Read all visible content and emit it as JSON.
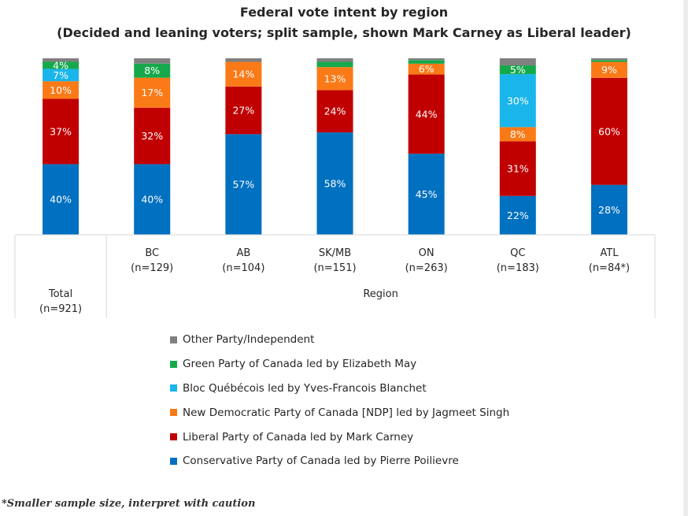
{
  "chart_data": {
    "type": "bar",
    "stacked": true,
    "title": "Federal vote intent by region",
    "subtitle": "(Decided and leaning voters; split sample, shown Mark Carney as Liberal leader)",
    "xlabel": "",
    "ylabel": "",
    "ylim": [
      0,
      100
    ],
    "grid": false,
    "legend_position": "bottom",
    "categories": [
      "Total\n(n=921)",
      "BC\n(n=129)",
      "AB\n(n=104)",
      "SK/MB\n(n=151)",
      "ON\n(n=263)",
      "QC\n(n=183)",
      "ATL\n(n=84*)"
    ],
    "group_labels": [
      {
        "label": "Total\n(n=921)",
        "members": [
          0
        ]
      },
      {
        "label": "Region",
        "members": [
          1,
          2,
          3,
          4,
          5,
          6
        ]
      }
    ],
    "series": [
      {
        "name": "Conservative Party of Canada led by Pierre Poilievre",
        "color": "#0070c0",
        "values": [
          40,
          40,
          57,
          58,
          45,
          22,
          28
        ],
        "labels": [
          "40%",
          "40%",
          "57%",
          "58%",
          "45%",
          "22%",
          "28%"
        ]
      },
      {
        "name": "Liberal Party of Canada led by Mark Carney",
        "color": "#c00000",
        "values": [
          37,
          32,
          27,
          24,
          44,
          31,
          60
        ],
        "labels": [
          "37%",
          "32%",
          "27%",
          "24%",
          "44%",
          "31%",
          "60%"
        ]
      },
      {
        "name": "New Democratic Party of Canada [NDP] led by Jagmeet Singh",
        "color": "#fa7a18",
        "values": [
          10,
          17,
          14,
          13,
          6,
          8,
          9
        ],
        "labels": [
          "10%",
          "17%",
          "14%",
          "13%",
          "6%",
          "8%",
          "9%"
        ]
      },
      {
        "name": "Bloc Québécois led by Yves-Francois Blanchet",
        "color": "#1ab5ea",
        "values": [
          7,
          0,
          0,
          0,
          0,
          30,
          0
        ],
        "labels": [
          "7%",
          "",
          "",
          "",
          "",
          "30%",
          ""
        ]
      },
      {
        "name": "Green Party of Canada led by Elizabeth May",
        "color": "#16a94b",
        "values": [
          4,
          8,
          0,
          3,
          2,
          5,
          1
        ],
        "labels": [
          "4%",
          "8%",
          "",
          "",
          "",
          "5%",
          ""
        ]
      },
      {
        "name": "Other Party/Independent",
        "color": "#808080",
        "values": [
          2,
          3,
          2,
          2,
          1,
          4,
          1
        ],
        "labels": [
          "",
          "",
          "",
          "",
          "",
          "",
          ""
        ]
      }
    ]
  },
  "footnote": "*Smaller sample size, interpret with caution"
}
